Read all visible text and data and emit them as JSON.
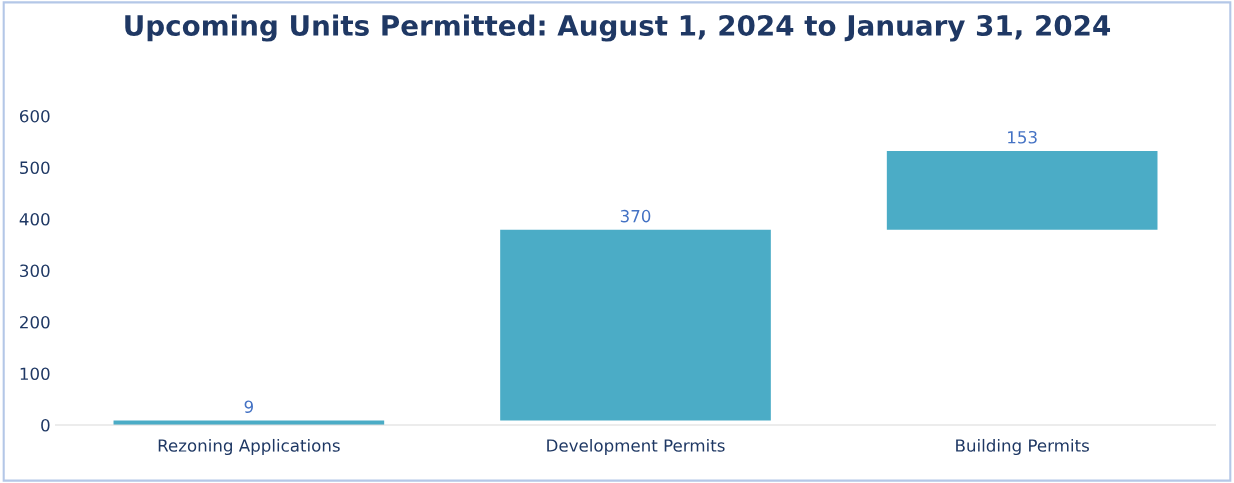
{
  "chart_data": {
    "type": "bar",
    "title": "Upcoming Units Permitted: August 1, 2024 to January 31, 2024",
    "categories": [
      "Rezoning Applications",
      "Development Permits",
      "Building Permits"
    ],
    "values": [
      9,
      370,
      153
    ],
    "base": [
      0,
      9,
      379
    ],
    "color": "#4bacc6",
    "ylim": [
      0,
      600
    ],
    "yticks": [
      0,
      100,
      200,
      300,
      400,
      500,
      600
    ],
    "grid": false,
    "data_labels": true
  }
}
